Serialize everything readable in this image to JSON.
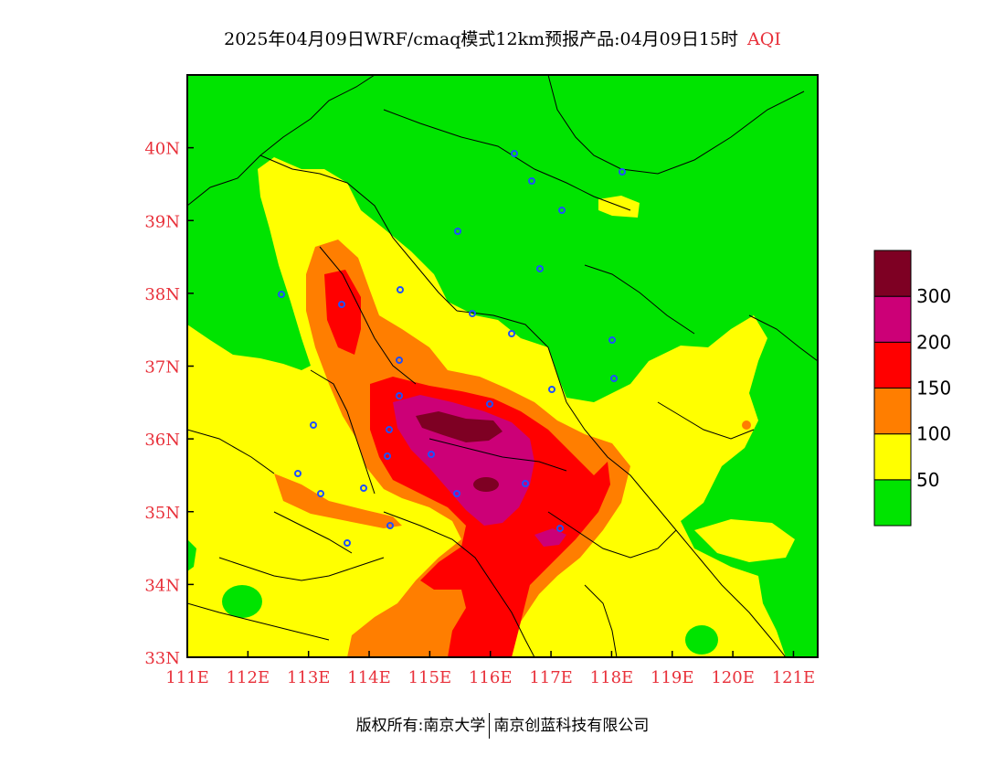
{
  "title": {
    "main": "2025年04月09日WRF/cmaq模式12km预报产品:04月09日15时",
    "variable": "AQI"
  },
  "map": {
    "lon_range": [
      111,
      121.4
    ],
    "lat_range": [
      33,
      41
    ],
    "x_ticks": [
      "111E",
      "112E",
      "113E",
      "114E",
      "115E",
      "116E",
      "117E",
      "118E",
      "119E",
      "120E",
      "121E"
    ],
    "y_ticks": [
      "33N",
      "34N",
      "35N",
      "36N",
      "37N",
      "38N",
      "39N",
      "40N"
    ],
    "label_color": "#e8303a"
  },
  "legend": {
    "colors": [
      "#00e400",
      "#ffff00",
      "#ff7e00",
      "#ff0000",
      "#cc0077",
      "#7e0023"
    ],
    "labels": [
      "50",
      "100",
      "150",
      "200",
      "300"
    ]
  },
  "footer": {
    "left": "版权所有:南京大学",
    "right": "南京创蓝科技有限公司"
  }
}
